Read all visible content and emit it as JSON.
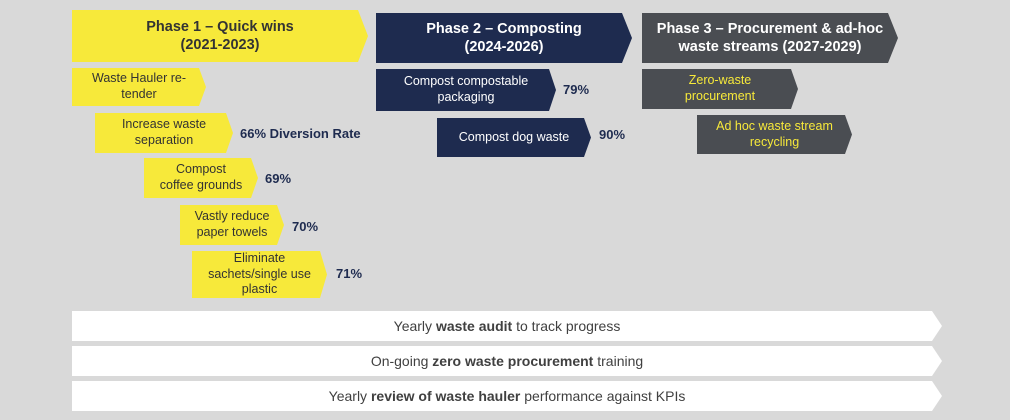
{
  "phases": [
    {
      "title": "Phase 1 – Quick wins",
      "years": "(2021-2023)"
    },
    {
      "title": "Phase 2 – Composting",
      "years": "(2024-2026)"
    },
    {
      "title": "Phase 3 – Procurement & ad-hoc",
      "years": "waste streams (2027-2029)"
    }
  ],
  "phase1_steps": [
    {
      "line1": "Waste Hauler re-",
      "line2": "tender",
      "line3": "",
      "pct": ""
    },
    {
      "line1": "Increase waste",
      "line2": "separation",
      "line3": "",
      "pct": "66% Diversion Rate"
    },
    {
      "line1": "Compost",
      "line2": "coffee grounds",
      "line3": "",
      "pct": "69%"
    },
    {
      "line1": "Vastly reduce",
      "line2": "paper towels",
      "line3": "",
      "pct": "70%"
    },
    {
      "line1": "Eliminate",
      "line2": "sachets/single use",
      "line3": "plastic",
      "pct": "71%"
    }
  ],
  "phase2_steps": [
    {
      "line1": "Compost compostable",
      "line2": "packaging",
      "pct": "79%"
    },
    {
      "line1": "Compost dog waste",
      "line2": "",
      "pct": "90%"
    }
  ],
  "phase3_steps": [
    {
      "line1": "Zero-waste",
      "line2": "procurement"
    },
    {
      "line1": "Ad hoc waste stream",
      "line2": "recycling"
    }
  ],
  "bars": [
    {
      "pre": "Yearly ",
      "bold": "waste audit",
      "post": " to track progress"
    },
    {
      "pre": "On-going ",
      "bold": "zero waste procurement",
      "post": " training"
    },
    {
      "pre": "Yearly ",
      "bold": "review of waste hauler",
      "post": " performance against KPIs"
    }
  ],
  "colors": {
    "yellow": "#f7e93a",
    "navy": "#1e2b4f",
    "grey": "#4a4d52",
    "background": "#d9d9d9"
  }
}
